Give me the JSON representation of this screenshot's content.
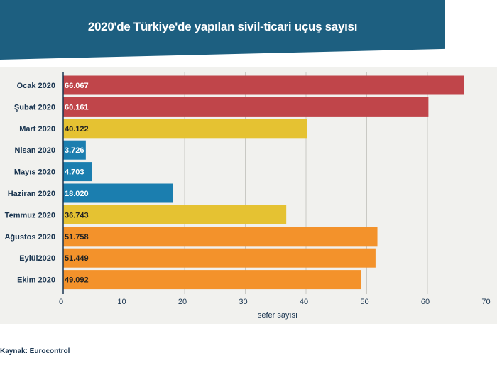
{
  "title": "2020'de Türkiye'de yapılan sivil-ticari uçuş sayısı",
  "source": "Kaynak: Eurocontrol",
  "colors": {
    "title_bg": "#1d5f80",
    "red": "#c0454a",
    "yellow": "#e5c232",
    "blue": "#1b7eaf",
    "orange": "#f3922b",
    "panel_bg": "#f1f1ee"
  },
  "chart_data": {
    "type": "bar",
    "orientation": "horizontal",
    "title": "2020'de Türkiye'de yapılan sivil-ticari uçuş sayısı",
    "xlabel": "sefer sayısı",
    "ylabel": "",
    "xlim": [
      0,
      70
    ],
    "xticks": [
      "0",
      "10",
      "20",
      "30",
      "40",
      "50",
      "60",
      "70"
    ],
    "grid": true,
    "categories": [
      "Ocak 2020",
      "Şubat 2020",
      "Mart 2020",
      "Nisan 2020",
      "Mayıs 2020",
      "Haziran 2020",
      "Temmuz 2020",
      "Ağustos 2020",
      "Eylül2020",
      "Ekim 2020"
    ],
    "values": [
      66.067,
      60.161,
      40.122,
      3.726,
      4.703,
      18.02,
      36.743,
      51.758,
      51.449,
      49.092
    ],
    "value_labels": [
      "66.067",
      "60.161",
      "40.122",
      "3.726",
      "4.703",
      "18.020",
      "36.743",
      "51.758",
      "51.449",
      "49.092"
    ],
    "bar_colors": [
      "#c0454a",
      "#c0454a",
      "#e5c232",
      "#1b7eaf",
      "#1b7eaf",
      "#1b7eaf",
      "#e5c232",
      "#f3922b",
      "#f3922b",
      "#f3922b"
    ],
    "label_colors": [
      "#ffffff",
      "#ffffff",
      "#222222",
      "#ffffff",
      "#ffffff",
      "#ffffff",
      "#222222",
      "#222222",
      "#222222",
      "#222222"
    ]
  }
}
